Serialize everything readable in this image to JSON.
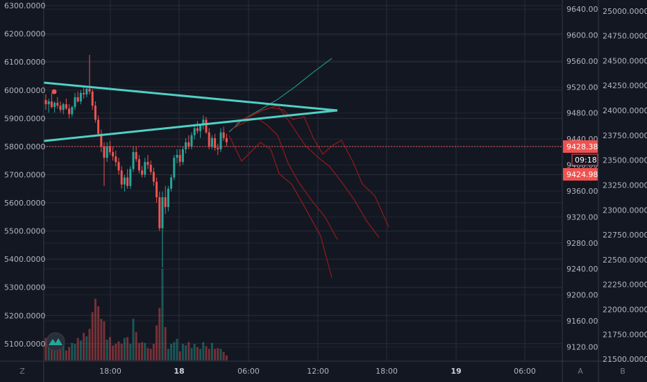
{
  "chart_data": {
    "type": "candlestick",
    "title": "",
    "colors": {
      "background": "#131722",
      "grid": "#2a2e39",
      "up": "#26a69a",
      "down": "#ef5350",
      "trendline": "#4fd1c5",
      "projection_up": "#1f8f7f",
      "projection_down": "#8b1a1a",
      "price_tag": "#ef5350"
    },
    "x_axis": {
      "labels": [
        "18:00",
        "18",
        "06:00",
        "12:00",
        "18:00",
        "19",
        "06:00"
      ],
      "bold_labels": [
        "18",
        "19"
      ]
    },
    "left_axis": {
      "range": [
        5038,
        6320
      ],
      "ticks": [
        "6300.0000",
        "6200.0000",
        "6100.0000",
        "6000.0000",
        "5900.0000",
        "5800.0000",
        "5700.0000",
        "5600.0000",
        "5500.0000",
        "5400.0000",
        "5300.0000",
        "5200.0000",
        "5100.0000"
      ]
    },
    "middle_axis": {
      "range": [
        9098,
        9654
      ],
      "ticks": [
        "9640.00",
        "9600.00",
        "9560.00",
        "9520.00",
        "9480.00",
        "9440.00",
        "9400.00",
        "9360.00",
        "9320.00",
        "9280.00",
        "9240.00",
        "9200.00",
        "9160.00",
        "9120.00"
      ],
      "price_tags": [
        {
          "value": 9428.38,
          "label": "9428.38"
        },
        {
          "value": 9424.98,
          "label": "9424.98"
        }
      ],
      "countdown": "09:18"
    },
    "right_axis": {
      "range": [
        21480,
        25110
      ],
      "ticks": [
        "25000.0000",
        "24750.0000",
        "24500.0000",
        "24250.0000",
        "24000.0000",
        "23750.0000",
        "23500.0000",
        "23250.0000",
        "23000.0000",
        "22750.0000",
        "22500.0000",
        "22250.0000",
        "22000.0000",
        "21750.0000",
        "21500.0000"
      ]
    },
    "corner_labels": {
      "left": "Z",
      "middle": "A",
      "right": "B"
    },
    "candles": [
      [
        5965,
        5985,
        5930,
        5950
      ],
      [
        5950,
        5970,
        5920,
        5960
      ],
      [
        5960,
        5990,
        5935,
        5940
      ],
      [
        5940,
        5960,
        5920,
        5955
      ],
      [
        5955,
        5975,
        5935,
        5945
      ],
      [
        5945,
        5960,
        5920,
        5930
      ],
      [
        5930,
        5955,
        5915,
        5950
      ],
      [
        5950,
        5970,
        5930,
        5935
      ],
      [
        5935,
        5950,
        5900,
        5915
      ],
      [
        5915,
        5945,
        5905,
        5940
      ],
      [
        5940,
        5990,
        5930,
        5975
      ],
      [
        5975,
        5995,
        5955,
        5960
      ],
      [
        5960,
        6000,
        5950,
        5990
      ],
      [
        5990,
        6010,
        5970,
        5985
      ],
      [
        5985,
        6015,
        5975,
        6005
      ],
      [
        6005,
        6125,
        5985,
        5995
      ],
      [
        5995,
        6005,
        5930,
        5945
      ],
      [
        5945,
        5960,
        5885,
        5895
      ],
      [
        5895,
        5910,
        5835,
        5845
      ],
      [
        5845,
        5860,
        5780,
        5800
      ],
      [
        5800,
        5815,
        5660,
        5760
      ],
      [
        5760,
        5815,
        5745,
        5800
      ],
      [
        5800,
        5820,
        5770,
        5780
      ],
      [
        5780,
        5800,
        5750,
        5765
      ],
      [
        5765,
        5785,
        5730,
        5745
      ],
      [
        5745,
        5760,
        5700,
        5715
      ],
      [
        5715,
        5730,
        5650,
        5665
      ],
      [
        5665,
        5700,
        5640,
        5690
      ],
      [
        5690,
        5720,
        5650,
        5660
      ],
      [
        5660,
        5730,
        5650,
        5720
      ],
      [
        5720,
        5800,
        5710,
        5780
      ],
      [
        5780,
        5800,
        5745,
        5755
      ],
      [
        5755,
        5770,
        5705,
        5715
      ],
      [
        5715,
        5730,
        5690,
        5700
      ],
      [
        5700,
        5760,
        5690,
        5745
      ],
      [
        5745,
        5770,
        5720,
        5735
      ],
      [
        5735,
        5750,
        5700,
        5710
      ],
      [
        5710,
        5725,
        5660,
        5675
      ],
      [
        5675,
        5690,
        5600,
        5620
      ],
      [
        5620,
        5640,
        5500,
        5510
      ],
      [
        5510,
        5640,
        5370,
        5620
      ],
      [
        5620,
        5660,
        5560,
        5585
      ],
      [
        5585,
        5660,
        5570,
        5650
      ],
      [
        5650,
        5700,
        5640,
        5690
      ],
      [
        5690,
        5770,
        5680,
        5760
      ],
      [
        5760,
        5790,
        5740,
        5770
      ],
      [
        5770,
        5790,
        5730,
        5745
      ],
      [
        5745,
        5800,
        5735,
        5790
      ],
      [
        5790,
        5830,
        5775,
        5815
      ],
      [
        5815,
        5840,
        5790,
        5800
      ],
      [
        5800,
        5850,
        5790,
        5840
      ],
      [
        5840,
        5880,
        5825,
        5865
      ],
      [
        5865,
        5890,
        5845,
        5855
      ],
      [
        5855,
        5880,
        5830,
        5875
      ],
      [
        5875,
        5910,
        5860,
        5895
      ],
      [
        5895,
        5905,
        5845,
        5850
      ],
      [
        5850,
        5865,
        5790,
        5800
      ],
      [
        5800,
        5840,
        5790,
        5830
      ],
      [
        5830,
        5845,
        5785,
        5795
      ],
      [
        5795,
        5810,
        5770,
        5790
      ],
      [
        5790,
        5865,
        5780,
        5850
      ],
      [
        5850,
        5870,
        5820,
        5830
      ],
      [
        5830,
        5845,
        5800,
        5815
      ]
    ],
    "volumes": [
      27,
      25,
      20,
      22,
      18,
      23,
      19,
      12,
      16,
      21,
      20,
      27,
      24,
      33,
      29,
      38,
      58,
      74,
      65,
      50,
      47,
      25,
      28,
      18,
      20,
      23,
      20,
      27,
      28,
      20,
      50,
      34,
      21,
      22,
      21,
      15,
      14,
      20,
      42,
      63,
      110,
      40,
      14,
      20,
      22,
      26,
      11,
      20,
      18,
      22,
      15,
      20,
      16,
      14,
      22,
      17,
      14,
      21,
      14,
      15,
      14,
      10,
      6
    ]
  }
}
